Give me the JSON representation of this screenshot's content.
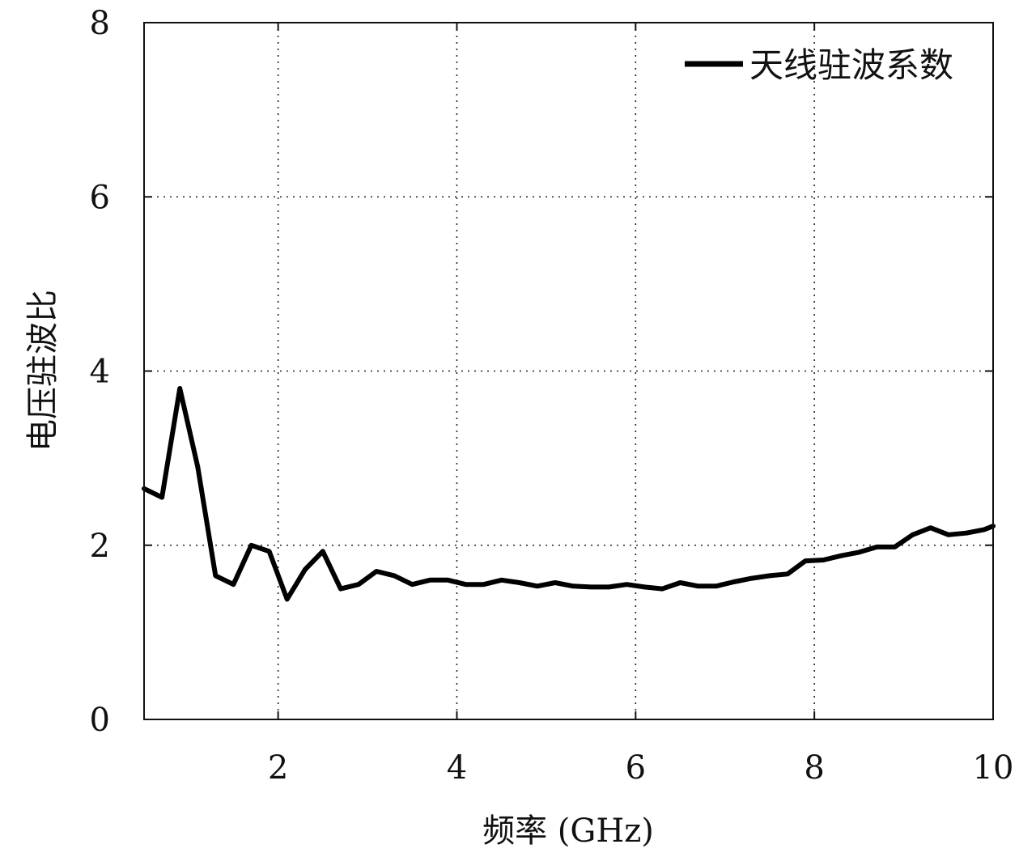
{
  "chart_data": {
    "type": "line",
    "title": "",
    "xlabel": "频率 (GHz)",
    "ylabel": "电压驻波比",
    "xlim": [
      0.5,
      10
    ],
    "ylim": [
      0,
      8
    ],
    "x_ticks": [
      2,
      4,
      6,
      8,
      10
    ],
    "y_ticks": [
      0,
      2,
      4,
      6,
      8
    ],
    "x_tick_labels": [
      "2",
      "4",
      "6",
      "8",
      "10"
    ],
    "y_tick_labels": [
      "0",
      "2",
      "4",
      "6",
      "8"
    ],
    "grid": true,
    "legend_position": "top-right",
    "series": [
      {
        "name": "天线驻波系数",
        "color": "#000000",
        "x": [
          0.5,
          0.7,
          0.9,
          1.1,
          1.3,
          1.5,
          1.7,
          1.9,
          2.1,
          2.3,
          2.5,
          2.7,
          2.9,
          3.1,
          3.3,
          3.5,
          3.7,
          3.9,
          4.1,
          4.3,
          4.5,
          4.7,
          4.9,
          5.1,
          5.3,
          5.5,
          5.7,
          5.9,
          6.1,
          6.3,
          6.5,
          6.7,
          6.9,
          7.1,
          7.3,
          7.5,
          7.7,
          7.9,
          8.1,
          8.3,
          8.5,
          8.7,
          8.9,
          9.1,
          9.3,
          9.5,
          9.7,
          9.9,
          10.0
        ],
        "y": [
          2.65,
          2.55,
          3.8,
          2.9,
          1.65,
          1.55,
          2.0,
          1.93,
          1.38,
          1.72,
          1.93,
          1.5,
          1.55,
          1.7,
          1.65,
          1.55,
          1.6,
          1.6,
          1.55,
          1.55,
          1.6,
          1.57,
          1.53,
          1.57,
          1.53,
          1.52,
          1.52,
          1.55,
          1.52,
          1.5,
          1.57,
          1.53,
          1.53,
          1.58,
          1.62,
          1.65,
          1.67,
          1.82,
          1.83,
          1.88,
          1.92,
          1.98,
          1.98,
          2.12,
          2.2,
          2.12,
          2.14,
          2.18,
          2.22
        ]
      }
    ]
  }
}
